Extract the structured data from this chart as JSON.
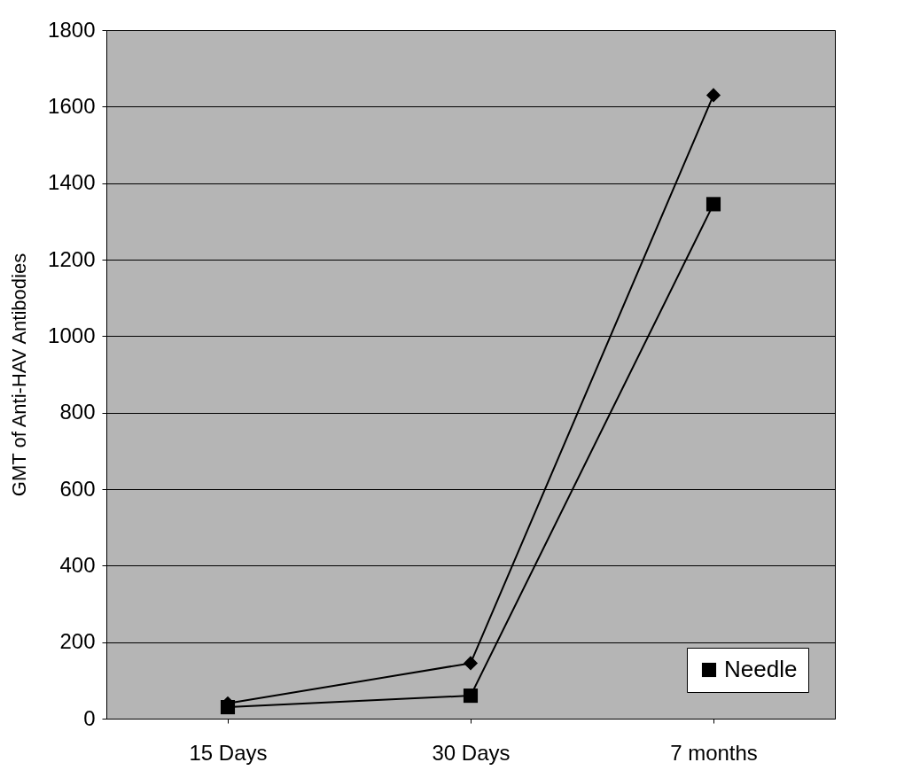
{
  "chart_data": {
    "type": "line",
    "ylabel": "GMT of Anti-HAV Antibodies",
    "categories": [
      "15 Days",
      "30 Days",
      "7 months"
    ],
    "series": [
      {
        "color": "#000000",
        "marker": "diamond",
        "values": [
          40,
          145,
          1630
        ]
      },
      {
        "name": "Needle",
        "color": "#000000",
        "marker": "square",
        "values": [
          30,
          60,
          1345
        ]
      }
    ],
    "ylim": [
      0,
      1800
    ],
    "yticks": [
      0,
      200,
      400,
      600,
      800,
      1000,
      1200,
      1400,
      1600,
      1800
    ],
    "grid": "y",
    "legend": "bottom right",
    "line_style": "solid"
  }
}
